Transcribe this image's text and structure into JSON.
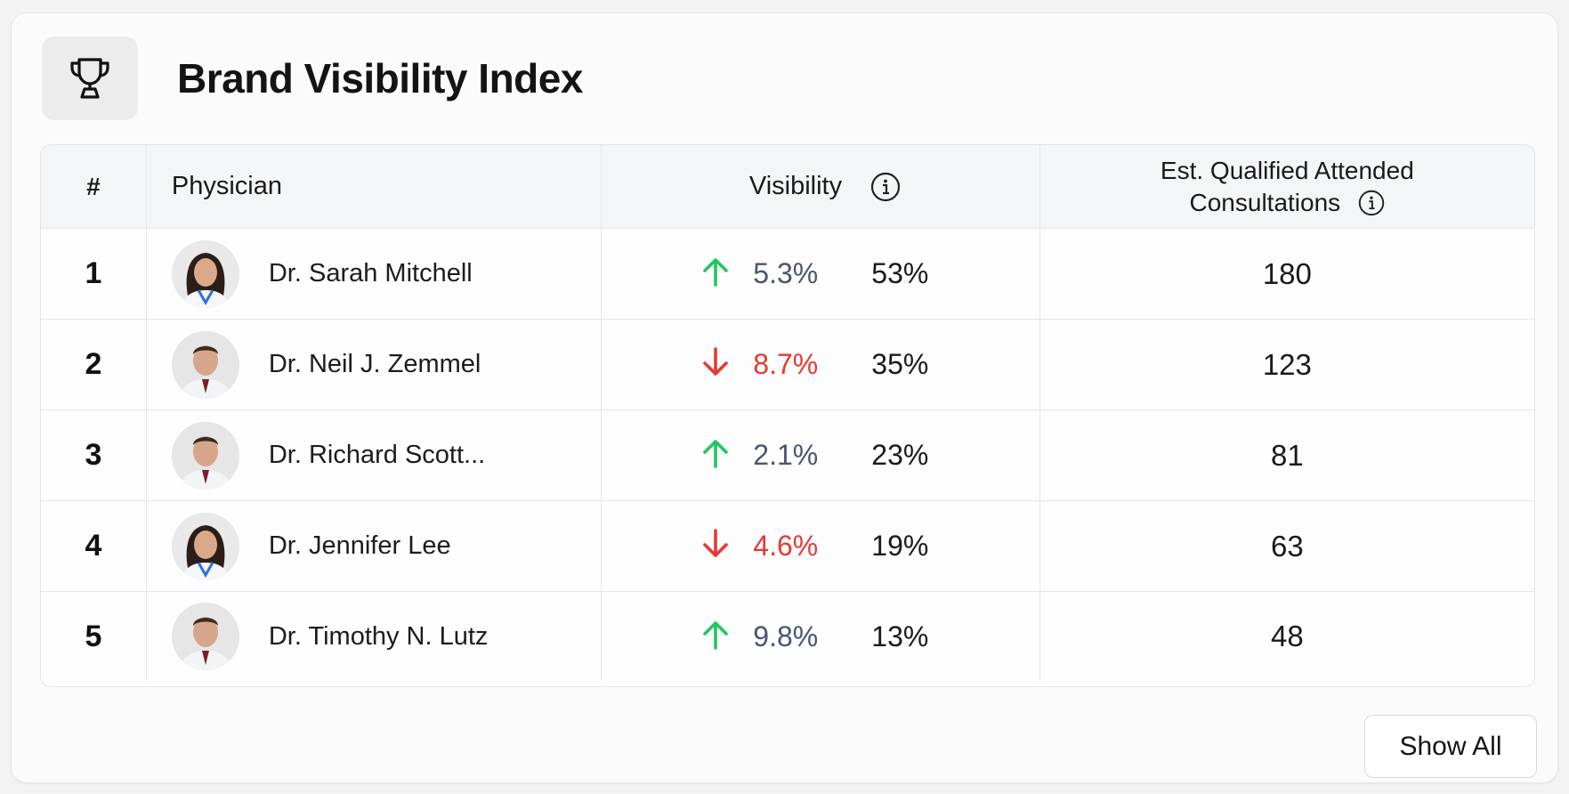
{
  "header": {
    "title": "Brand Visibility Index",
    "icon": "trophy-icon"
  },
  "table": {
    "columns": {
      "rank": "#",
      "physician": "Physician",
      "visibility": "Visibility",
      "est_line1": "Est. Qualified Attended",
      "est_line2": "Consultations"
    },
    "rows": [
      {
        "rank": "1",
        "name": "Dr. Sarah Mitchell",
        "trend": "up",
        "delta": "5.3%",
        "visibility": "53%",
        "est": "180",
        "avatar": "female"
      },
      {
        "rank": "2",
        "name": "Dr. Neil J. Zemmel",
        "trend": "down",
        "delta": "8.7%",
        "visibility": "35%",
        "est": "123",
        "avatar": "male"
      },
      {
        "rank": "3",
        "name": "Dr. Richard Scott...",
        "trend": "up",
        "delta": "2.1%",
        "visibility": "23%",
        "est": "81",
        "avatar": "male"
      },
      {
        "rank": "4",
        "name": "Dr. Jennifer Lee",
        "trend": "down",
        "delta": "4.6%",
        "visibility": "19%",
        "est": "63",
        "avatar": "female"
      },
      {
        "rank": "5",
        "name": "Dr. Timothy N. Lutz",
        "trend": "up",
        "delta": "9.8%",
        "visibility": "13%",
        "est": "48",
        "avatar": "male"
      }
    ]
  },
  "actions": {
    "show_all": "Show All"
  },
  "colors": {
    "up_arrow": "#22c55e",
    "down_arrow": "#e53935",
    "delta_up_text": "#4a5573",
    "delta_down_text": "#e53935"
  }
}
